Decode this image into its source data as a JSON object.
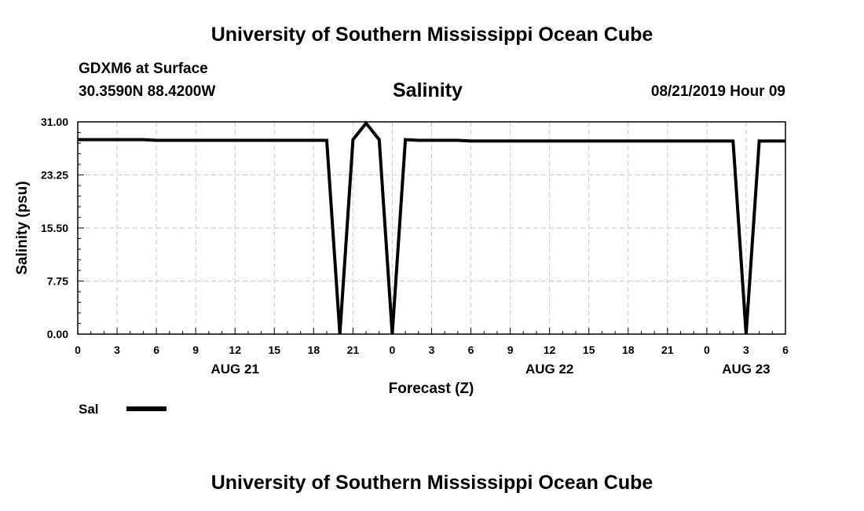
{
  "header": {
    "title": "University of Southern Mississippi Ocean Cube",
    "station": "GDXM6 at Surface",
    "location": "30.3590N 88.4200W",
    "date": "08/21/2019 Hour 09"
  },
  "footer": {
    "title": "University of Southern Mississippi Ocean Cube"
  },
  "chart_data": {
    "type": "line",
    "title": "Salinity",
    "xlabel": "Forecast (Z)",
    "ylabel": "Salinity (psu)",
    "xlim": [
      0,
      54
    ],
    "ylim": [
      0,
      31
    ],
    "grid": true,
    "x_tick_labels": [
      "0",
      "3",
      "6",
      "9",
      "12",
      "15",
      "18",
      "21",
      "0",
      "3",
      "6",
      "9",
      "12",
      "15",
      "18",
      "21",
      "0",
      "3",
      "6"
    ],
    "y_tick_labels": [
      "0.00",
      "7.75",
      "15.50",
      "23.25",
      "31.00"
    ],
    "date_labels": [
      {
        "label": "AUG 21",
        "hour": 12
      },
      {
        "label": "AUG 22",
        "hour": 36
      },
      {
        "label": "AUG 23",
        "hour": 51
      }
    ],
    "series": [
      {
        "name": "Sal",
        "color": "#000000",
        "x": [
          0,
          1,
          2,
          3,
          4,
          5,
          6,
          7,
          8,
          9,
          10,
          11,
          12,
          13,
          14,
          15,
          16,
          17,
          18,
          19,
          20,
          21,
          22,
          23,
          24,
          25,
          26,
          27,
          28,
          29,
          30,
          31,
          32,
          33,
          34,
          35,
          36,
          37,
          38,
          39,
          40,
          41,
          42,
          43,
          44,
          45,
          46,
          47,
          48,
          49,
          50,
          51,
          52,
          53,
          54
        ],
        "values": [
          28.4,
          28.4,
          28.4,
          28.4,
          28.4,
          28.4,
          28.3,
          28.3,
          28.3,
          28.3,
          28.3,
          28.3,
          28.3,
          28.3,
          28.3,
          28.3,
          28.3,
          28.3,
          28.3,
          28.3,
          0.0,
          28.4,
          30.8,
          28.4,
          0.0,
          28.4,
          28.3,
          28.3,
          28.3,
          28.3,
          28.2,
          28.2,
          28.2,
          28.2,
          28.2,
          28.2,
          28.2,
          28.2,
          28.2,
          28.2,
          28.2,
          28.2,
          28.2,
          28.2,
          28.2,
          28.2,
          28.2,
          28.2,
          28.2,
          28.2,
          28.2,
          0.0,
          28.2,
          28.2,
          28.2
        ]
      }
    ],
    "legend": "bottom-left"
  }
}
